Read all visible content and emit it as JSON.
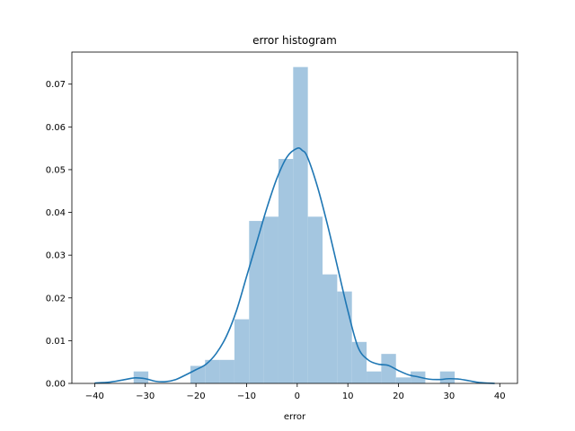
{
  "chart_data": {
    "type": "bar",
    "title": "error histogram",
    "xlabel": "error",
    "ylabel": "",
    "xlim": [
      -44.5,
      43.5
    ],
    "ylim": [
      0,
      0.0775
    ],
    "x_ticks": [
      -40,
      -30,
      -20,
      -10,
      0,
      10,
      20,
      30,
      40
    ],
    "y_ticks": [
      0.0,
      0.01,
      0.02,
      0.03,
      0.04,
      0.05,
      0.06,
      0.07
    ],
    "grid": false,
    "legend": "none",
    "series": [
      {
        "kind": "histogram",
        "bins": [
          {
            "x0": -32.3,
            "x1": -29.4,
            "value": 0.0028
          },
          {
            "x0": -21.1,
            "x1": -18.2,
            "value": 0.0041
          },
          {
            "x0": -18.2,
            "x1": -15.3,
            "value": 0.0055
          },
          {
            "x0": -15.3,
            "x1": -12.4,
            "value": 0.0055
          },
          {
            "x0": -12.4,
            "x1": -9.5,
            "value": 0.015
          },
          {
            "x0": -9.5,
            "x1": -6.6,
            "value": 0.038
          },
          {
            "x0": -6.6,
            "x1": -3.7,
            "value": 0.039
          },
          {
            "x0": -3.7,
            "x1": -0.8,
            "value": 0.0525
          },
          {
            "x0": -0.8,
            "x1": 2.1,
            "value": 0.074
          },
          {
            "x0": 2.1,
            "x1": 5.0,
            "value": 0.039
          },
          {
            "x0": 5.0,
            "x1": 7.9,
            "value": 0.0255
          },
          {
            "x0": 7.9,
            "x1": 10.8,
            "value": 0.0215
          },
          {
            "x0": 10.8,
            "x1": 13.7,
            "value": 0.0097
          },
          {
            "x0": 13.7,
            "x1": 16.6,
            "value": 0.0028
          },
          {
            "x0": 16.6,
            "x1": 19.5,
            "value": 0.0069
          },
          {
            "x0": 19.5,
            "x1": 22.4,
            "value": 0.0014
          },
          {
            "x0": 22.4,
            "x1": 25.3,
            "value": 0.0028
          },
          {
            "x0": 28.2,
            "x1": 31.1,
            "value": 0.0028
          }
        ]
      },
      {
        "kind": "kde",
        "x": [
          -40,
          -37,
          -34,
          -32,
          -30,
          -28,
          -26,
          -24,
          -22,
          -20,
          -18,
          -16,
          -14,
          -12,
          -10,
          -8,
          -6,
          -4,
          -2,
          0,
          1,
          2,
          4,
          6,
          8,
          10,
          12,
          14,
          16,
          18,
          20,
          22,
          24,
          26,
          28,
          30,
          32,
          34,
          36,
          39
        ],
        "y": [
          0.0001,
          0.0003,
          0.0009,
          0.0013,
          0.0011,
          0.0005,
          0.0004,
          0.0009,
          0.002,
          0.0032,
          0.0045,
          0.007,
          0.011,
          0.017,
          0.025,
          0.033,
          0.041,
          0.048,
          0.053,
          0.055,
          0.0545,
          0.053,
          0.046,
          0.037,
          0.027,
          0.017,
          0.0085,
          0.0055,
          0.0045,
          0.0042,
          0.003,
          0.002,
          0.0015,
          0.001,
          0.0009,
          0.0011,
          0.001,
          0.0006,
          0.0002,
          0.0
        ]
      }
    ],
    "colors": {
      "bar_fill": "#a4c6e0",
      "kde_line": "#1f77b4",
      "axes": "#000000"
    }
  }
}
